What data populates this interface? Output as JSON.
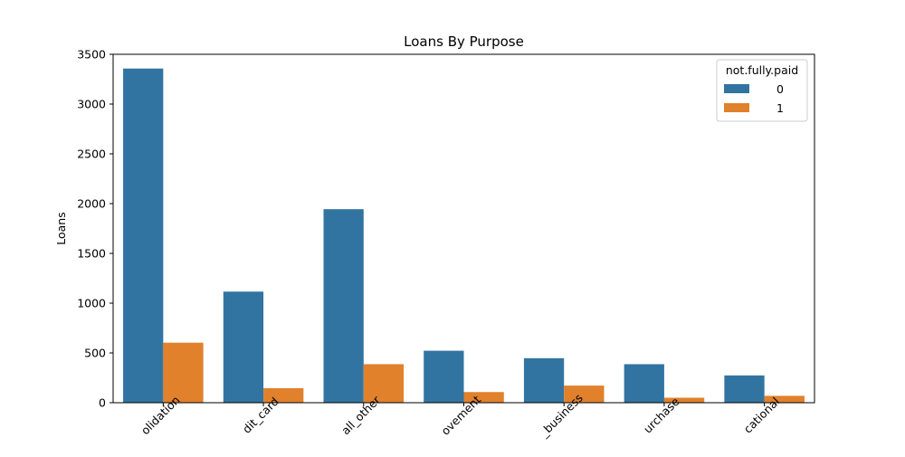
{
  "chart_data": {
    "type": "bar",
    "title": "Loans By Purpose",
    "xlabel": "",
    "ylabel": "Loans",
    "ylim": [
      0,
      3500
    ],
    "yticks": [
      0,
      500,
      1000,
      1500,
      2000,
      2500,
      3000,
      3500
    ],
    "categories": [
      "debt_consolidation",
      "credit_card",
      "all_other",
      "home_improvement",
      "small_business",
      "major_purchase",
      "educational"
    ],
    "visible_tick_labels": [
      "olidation",
      "dit_card",
      "all_other",
      "ovement",
      "_business",
      "urchase",
      "cational"
    ],
    "series": [
      {
        "name": "0",
        "color": "#3274a1",
        "values": [
          3357,
          1116,
          1944,
          522,
          447,
          387,
          274
        ]
      },
      {
        "name": "1",
        "color": "#e1812c",
        "values": [
          603,
          146,
          387,
          107,
          172,
          50,
          69
        ]
      }
    ],
    "legend": {
      "title": "not.fully.paid",
      "placement": "top-right"
    },
    "grid": false
  }
}
